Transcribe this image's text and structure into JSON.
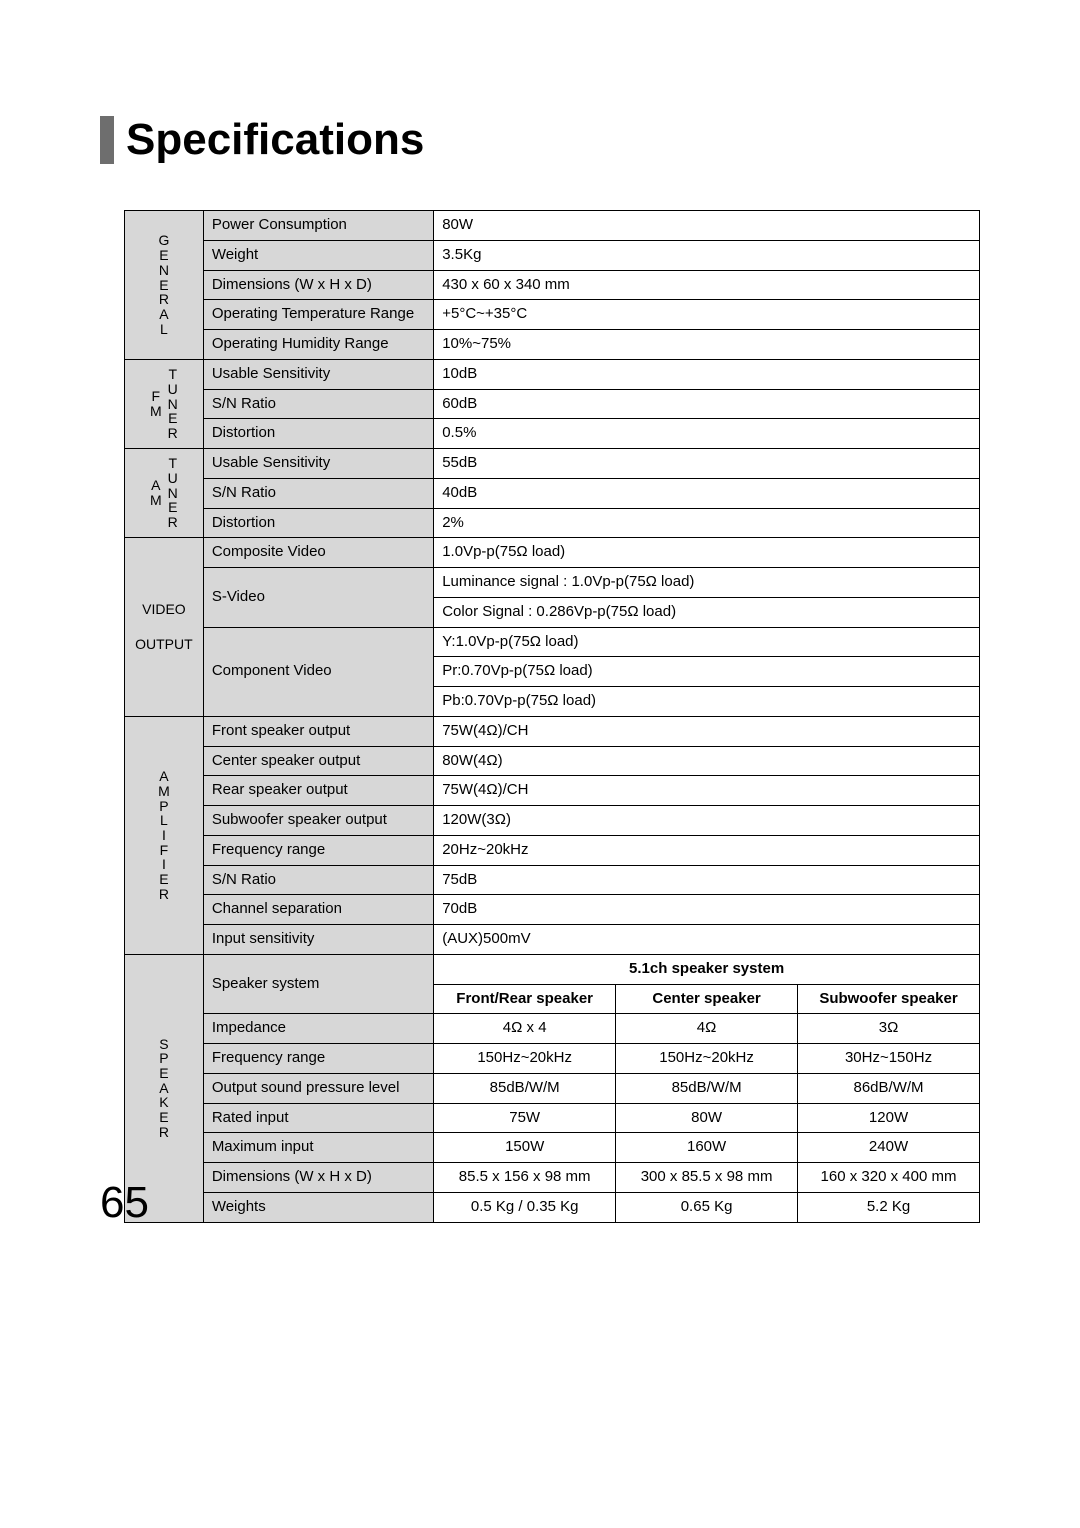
{
  "colors": {
    "background": "#ffffff",
    "text": "#000000",
    "section_bar": "#6e6e6e",
    "shaded_cell": "#d7d7d7",
    "border": "#000000"
  },
  "title": "Specifications",
  "page_number": "65",
  "sections": {
    "general": {
      "label": "GENERAL",
      "rows": {
        "power_consumption": {
          "label": "Power Consumption",
          "value": "80W"
        },
        "weight": {
          "label": "Weight",
          "value": "3.5Kg"
        },
        "dimensions": {
          "label": "Dimensions (W x H x D)",
          "value": "430 x 60 x 340 mm"
        },
        "op_temp": {
          "label": "Operating Temperature Range",
          "value": "+5°C~+35°C"
        },
        "op_humidity": {
          "label": "Operating Humidity Range",
          "value": "10%~75%"
        }
      }
    },
    "fm_tuner": {
      "outer": "FM",
      "inner": "TUNER",
      "rows": {
        "usable_sensitivity": {
          "label": "Usable Sensitivity",
          "value": "10dB"
        },
        "sn_ratio": {
          "label": "S/N Ratio",
          "value": "60dB"
        },
        "distortion": {
          "label": "Distortion",
          "value": "0.5%"
        }
      }
    },
    "am_tuner": {
      "outer": "AM",
      "inner": "TUNER",
      "rows": {
        "usable_sensitivity": {
          "label": "Usable Sensitivity",
          "value": "55dB"
        },
        "sn_ratio": {
          "label": "S/N Ratio",
          "value": "40dB"
        },
        "distortion": {
          "label": "Distortion",
          "value": "2%"
        }
      }
    },
    "video_output": {
      "label_line1": "VIDEO",
      "label_line2": "OUTPUT",
      "rows": {
        "composite": {
          "label": "Composite Video",
          "value": "1.0Vp-p(75Ω load)"
        },
        "svideo": {
          "label": "S-Video",
          "values": {
            "luminance": "Luminance signal : 1.0Vp-p(75Ω load)",
            "color": "Color Signal : 0.286Vp-p(75Ω load)"
          }
        },
        "component": {
          "label": "Component Video",
          "values": {
            "y": "Y:1.0Vp-p(75Ω load)",
            "pr": "Pr:0.70Vp-p(75Ω load)",
            "pb": "Pb:0.70Vp-p(75Ω load)"
          }
        }
      }
    },
    "amplifier": {
      "label": "AMPLIFIER",
      "rows": {
        "front_out": {
          "label": "Front speaker output",
          "value": "75W(4Ω)/CH"
        },
        "center_out": {
          "label": "Center speaker output",
          "value": "80W(4Ω)"
        },
        "rear_out": {
          "label": "Rear speaker output",
          "value": "75W(4Ω)/CH"
        },
        "sub_out": {
          "label": "Subwoofer speaker output",
          "value": "120W(3Ω)"
        },
        "freq_range": {
          "label": "Frequency range",
          "value": "20Hz~20kHz"
        },
        "sn_ratio": {
          "label": "S/N Ratio",
          "value": "75dB"
        },
        "ch_sep": {
          "label": "Channel separation",
          "value": "70dB"
        },
        "input_sens": {
          "label": "Input sensitivity",
          "value": "(AUX)500mV"
        }
      }
    },
    "speaker": {
      "label": "SPEAKER",
      "system_label": "Speaker system",
      "header_top": "5.1ch speaker system",
      "cols": {
        "front_rear": "Front/Rear speaker",
        "center": "Center speaker",
        "sub": "Subwoofer speaker"
      },
      "rows": {
        "impedance": {
          "label": "Impedance",
          "front_rear": "4Ω x 4",
          "center": "4Ω",
          "sub": "3Ω"
        },
        "freq_range": {
          "label": "Frequency range",
          "front_rear": "150Hz~20kHz",
          "center": "150Hz~20kHz",
          "sub": "30Hz~150Hz"
        },
        "spl": {
          "label": "Output sound pressure level",
          "front_rear": "85dB/W/M",
          "center": "85dB/W/M",
          "sub": "86dB/W/M"
        },
        "rated": {
          "label": "Rated input",
          "front_rear": "75W",
          "center": "80W",
          "sub": "120W"
        },
        "max": {
          "label": "Maximum input",
          "front_rear": "150W",
          "center": "160W",
          "sub": "240W"
        },
        "dimensions": {
          "label": "Dimensions  (W x H x D)",
          "front_rear": "85.5 x 156 x 98 mm",
          "center": "300 x 85.5 x 98 mm",
          "sub": "160 x 320 x 400 mm"
        },
        "weights": {
          "label": "Weights",
          "front_rear": "0.5 Kg /  0.35 Kg",
          "center": "0.65 Kg",
          "sub": "5.2 Kg"
        }
      }
    }
  }
}
